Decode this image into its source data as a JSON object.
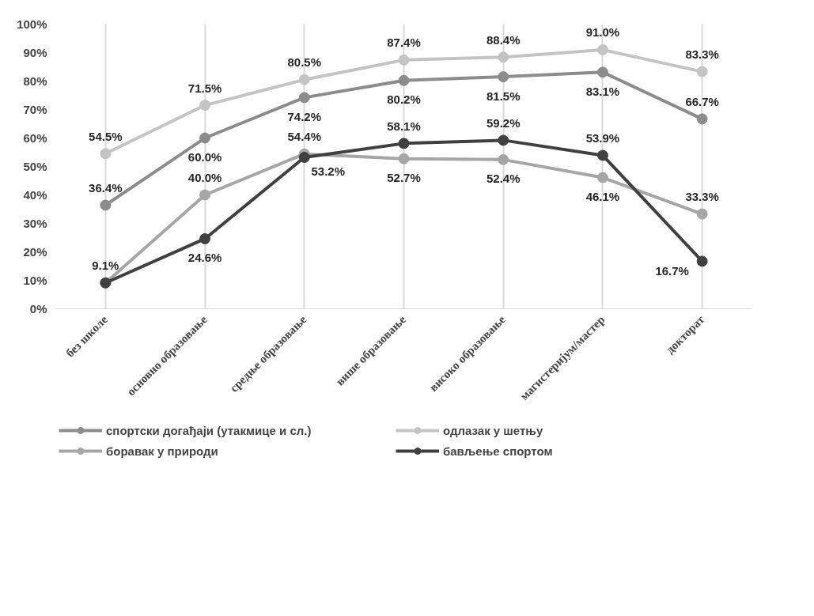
{
  "chart_data": {
    "type": "line",
    "categories": [
      "без школе",
      "основно образовање",
      "средње образовање",
      "више образовање",
      "високо образовање",
      "магистеријум/мастер",
      "докторат"
    ],
    "series": [
      {
        "name": "спортски догађаји (утакмице и сл.)",
        "color": "#8c8c8c",
        "values": [
          36.4,
          60.0,
          74.2,
          80.2,
          81.5,
          83.1,
          66.7
        ],
        "value_labels": [
          "36.4%",
          "60.0%",
          "74.2%",
          "80.2%",
          "81.5%",
          "83.1%",
          "66.7%"
        ]
      },
      {
        "name": "одлазак у шетњу",
        "color": "#c4c4c4",
        "values": [
          54.5,
          71.5,
          80.5,
          87.4,
          88.4,
          91.0,
          83.3
        ],
        "value_labels": [
          "54.5%",
          "71.5%",
          "80.5%",
          "87.4%",
          "88.4%",
          "91.0%",
          "83.3%"
        ]
      },
      {
        "name": "боравак у природи",
        "color": "#a6a6a6",
        "values": [
          9.1,
          40.0,
          54.4,
          52.7,
          52.4,
          46.1,
          33.3
        ],
        "value_labels": [
          null,
          "40.0%",
          "54.4%",
          "52.7%",
          "52.4%",
          "46.1%",
          "33.3%"
        ]
      },
      {
        "name": "бављење спортом",
        "color": "#404040",
        "values": [
          9.1,
          24.6,
          53.2,
          58.1,
          59.2,
          53.9,
          16.7
        ],
        "value_labels": [
          "9.1%",
          "24.6%",
          "53.2%",
          "58.1%",
          "59.2%",
          "53.9%",
          "16.7%"
        ]
      }
    ],
    "ylim": [
      0,
      100
    ],
    "yticks": [
      {
        "value": 0,
        "label": "0%"
      },
      {
        "value": 10,
        "label": "10%"
      },
      {
        "value": 20,
        "label": "20%"
      },
      {
        "value": 30,
        "label": "30%"
      },
      {
        "value": 40,
        "label": "40%"
      },
      {
        "value": 50,
        "label": "50%"
      },
      {
        "value": 60,
        "label": "60%"
      },
      {
        "value": 70,
        "label": "70%"
      },
      {
        "value": 80,
        "label": "80%"
      },
      {
        "value": 90,
        "label": "90%"
      },
      {
        "value": 100,
        "label": "100%"
      }
    ],
    "grid": "x",
    "legend": "bottom",
    "marker": "circle",
    "line_style": "solid",
    "data_labels": true
  }
}
